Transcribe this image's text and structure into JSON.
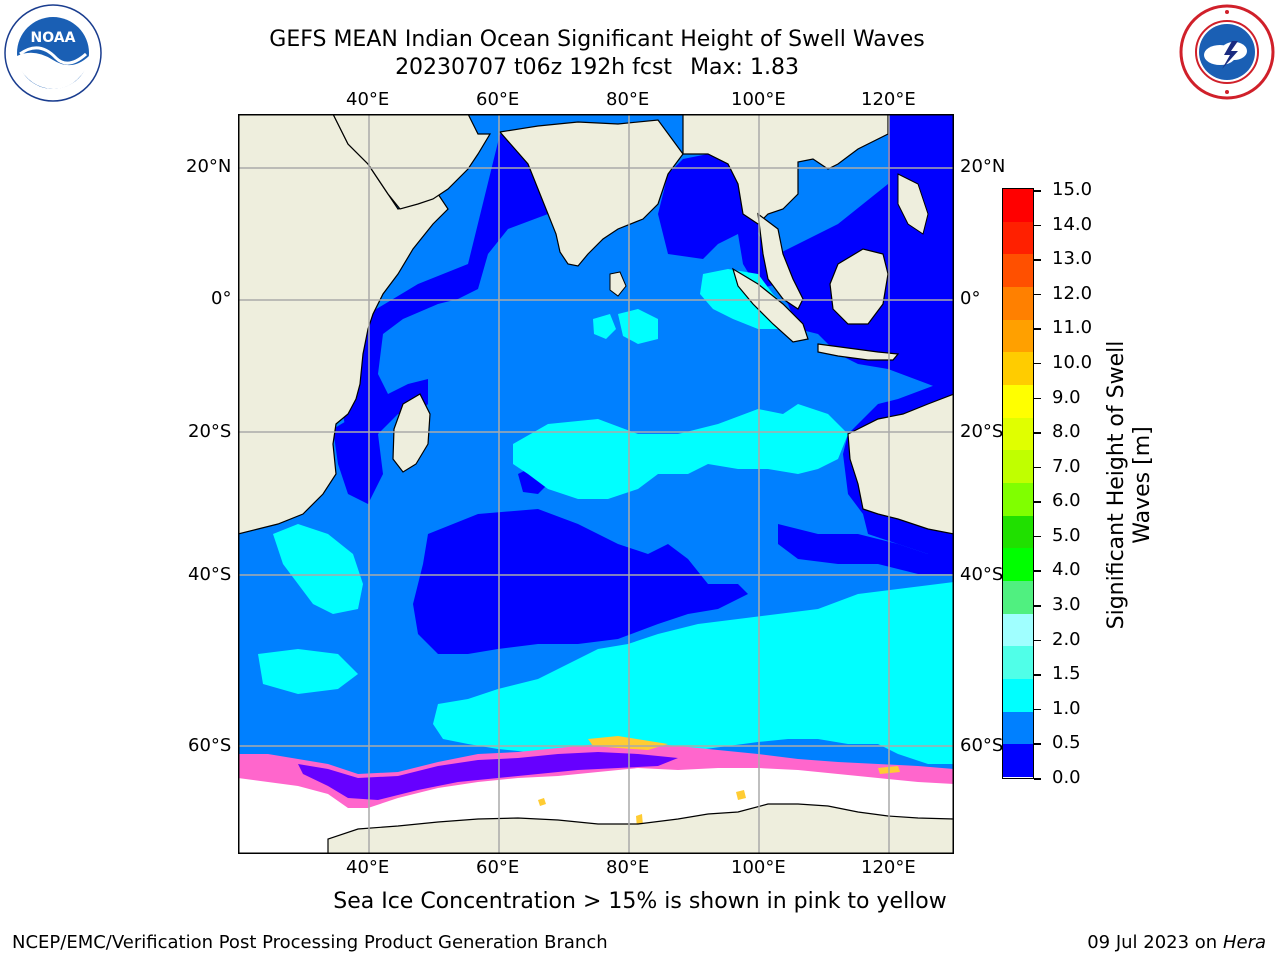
{
  "header": {
    "title_line1": "GEFS MEAN Indian Ocean Significant Height of Swell Waves",
    "title_line2_a": "20230707 t06z 192h fcst",
    "title_line2_b": "Max: 1.83",
    "noaa_logo_text": "NOAA",
    "nws_logo_icon": "nws-logo-icon"
  },
  "map": {
    "lon_labels": [
      "40°E",
      "60°E",
      "80°E",
      "100°E",
      "120°E"
    ],
    "lat_labels": [
      "20°N",
      "0°",
      "20°S",
      "40°S",
      "60°S"
    ],
    "colors": {
      "land": "#eeeedd",
      "ocean_dark": "#0000ff",
      "ocean_mid": "#0080ff",
      "ocean_light": "#00ffff",
      "ice_white": "#ffffff",
      "ice_pink": "#ff66cc",
      "ice_yellow": "#ffcc33",
      "grid": "#aaaaaa"
    }
  },
  "colorbar": {
    "title_line1": "Significant Height of Swell",
    "title_line2": "Waves [m]",
    "labels": [
      "15.0",
      "14.0",
      "13.0",
      "12.0",
      "11.0",
      "10.0",
      "9.0",
      "8.0",
      "7.0",
      "6.0",
      "5.0",
      "4.0",
      "3.0",
      "2.0",
      "1.5",
      "1.0",
      "0.5",
      "0.0"
    ],
    "colors_bottom_to_top": [
      "#0000ff",
      "#0080ff",
      "#00ffff",
      "#50ffe8",
      "#a0ffff",
      "#50f080",
      "#00ff00",
      "#20e000",
      "#80ff00",
      "#c0ff00",
      "#e0ff00",
      "#ffff00",
      "#ffcc00",
      "#ffa000",
      "#ff8000",
      "#ff5000",
      "#ff2000",
      "#ff0000"
    ]
  },
  "caption": "Sea Ice Concentration > 15% is shown in pink to yellow",
  "footer": {
    "left": "NCEP/EMC/Verification Post Processing Product Generation Branch",
    "right_date": "09 Jul 2023 on",
    "right_host": "Hera"
  }
}
